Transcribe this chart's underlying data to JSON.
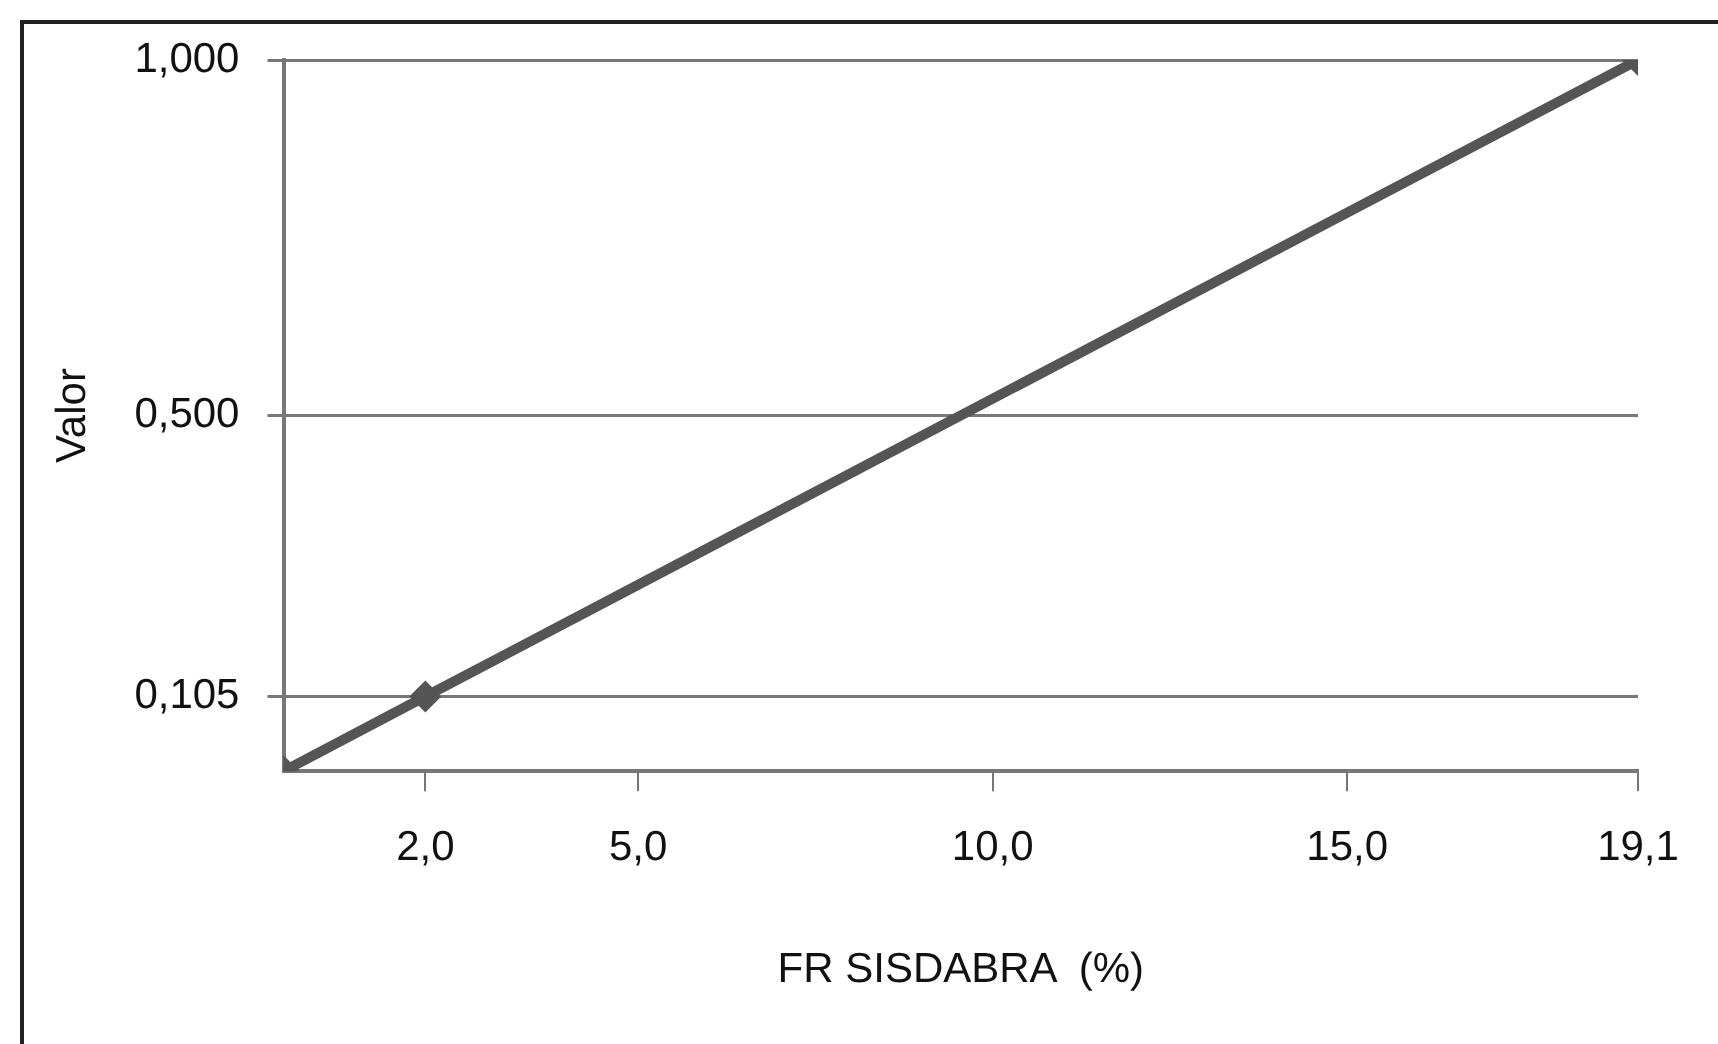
{
  "chart_data": {
    "type": "line",
    "xlabel": "FR SISDABRA  (%)",
    "ylabel": "Valor",
    "x": [
      0,
      2,
      19.1
    ],
    "series": [
      {
        "color": "#555555",
        "values": [
          0,
          0.105,
          1
        ]
      }
    ],
    "xlim": [
      0,
      19.1
    ],
    "ylim": [
      0,
      1
    ],
    "xticks": [
      {
        "value": 2,
        "label": "2,0"
      },
      {
        "value": 5,
        "label": "5,0"
      },
      {
        "value": 10,
        "label": "10,0"
      },
      {
        "value": 15,
        "label": "15,0"
      },
      {
        "value": 19.1,
        "label": "19,1"
      }
    ],
    "yticks": [
      {
        "value": 0.105,
        "label": "0,105"
      },
      {
        "value": 0.5,
        "label": "0,500"
      },
      {
        "value": 1,
        "label": "1,000"
      }
    ],
    "grid": "y",
    "legend": false,
    "marker": "diamond",
    "line_style": "solid"
  }
}
